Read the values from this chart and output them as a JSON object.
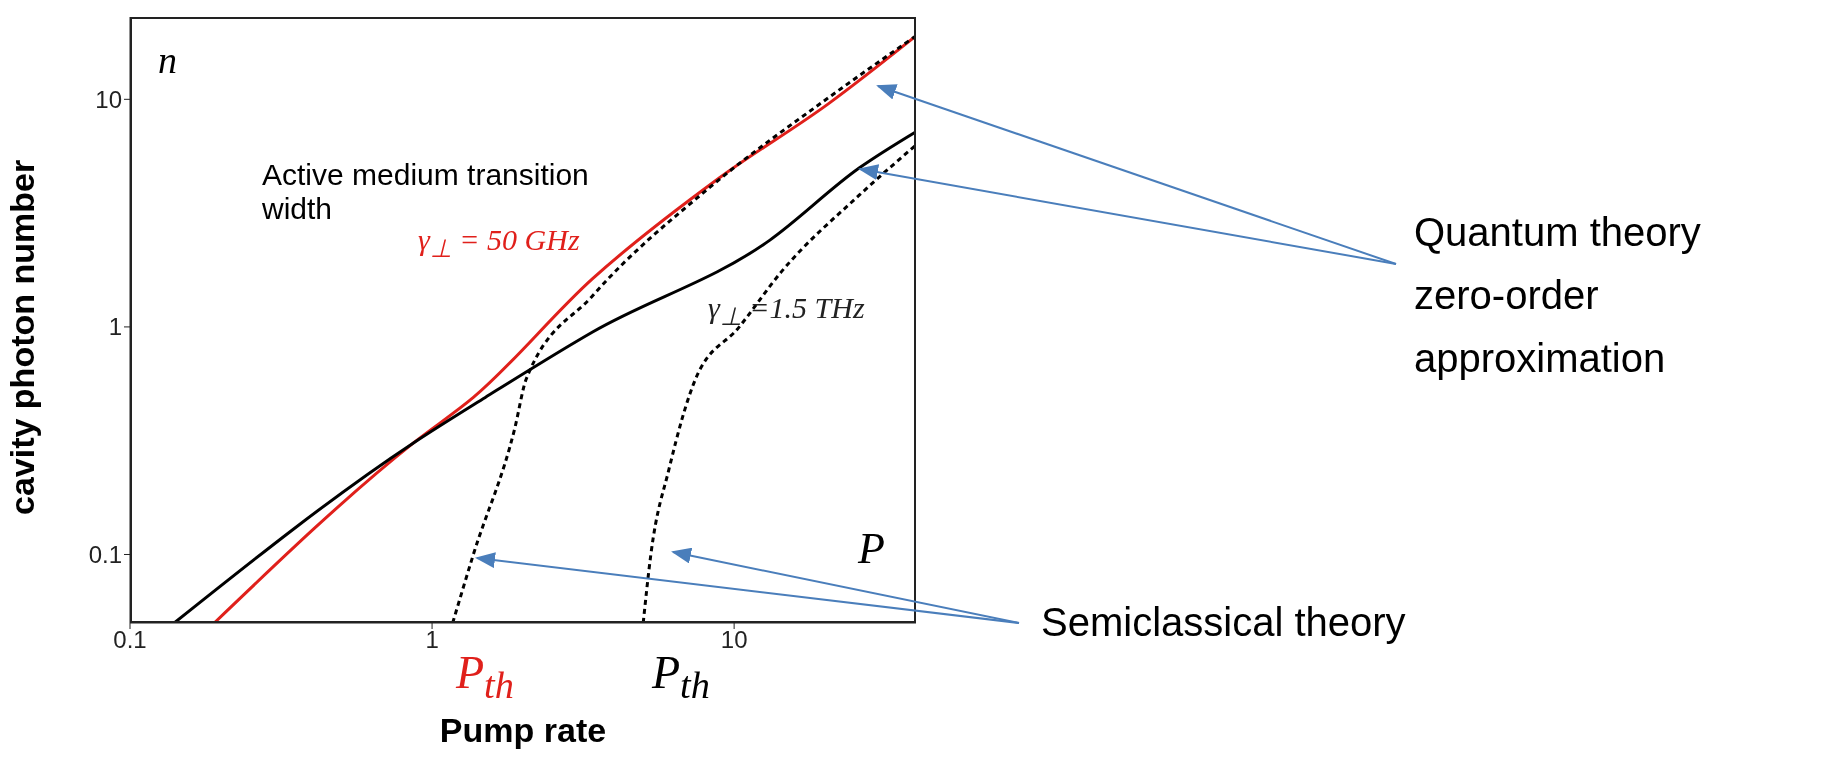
{
  "chart_data": {
    "type": "line",
    "xlabel": "Pump rate",
    "ylabel": "cavity photon number",
    "log": "xy",
    "xlim": [
      0.1,
      40
    ],
    "xticks": [
      0.1,
      1,
      10
    ],
    "ylim": [
      0.05,
      23
    ],
    "yticks": [
      0.1,
      1,
      10
    ],
    "grid": false,
    "legend": false,
    "marker": "none",
    "line_style": "solid",
    "series": [
      {
        "color": "#e0201b",
        "x": [
          0.19,
          0.87,
          1.37,
          3.4,
          8.9,
          20.6,
          40
        ],
        "values": [
          0.05,
          0.31,
          0.49,
          1.63,
          4.5,
          9.6,
          19
        ]
      },
      {
        "color": "#000000",
        "x": [
          0.14,
          0.87,
          1.5,
          3.4,
          13.1,
          26,
          40
        ],
        "values": [
          0.05,
          0.31,
          0.49,
          0.95,
          2.4,
          5.0,
          7.2
        ]
      },
      {
        "color": "#000000",
        "line_style": "dashed",
        "x": [
          1.17,
          1.37,
          1.88,
          2.05,
          3.4,
          8.3,
          20.6,
          40
        ],
        "values": [
          0.05,
          0.1,
          0.36,
          0.59,
          1.37,
          4.1,
          10.2,
          19
        ]
      },
      {
        "color": "#000000",
        "line_style": "dashed",
        "x": [
          5.0,
          5.3,
          6.1,
          7.45,
          10.4,
          14.3,
          26,
          40
        ],
        "values": [
          0.05,
          0.1,
          0.24,
          0.59,
          1.0,
          1.74,
          3.8,
          6.3
        ]
      }
    ],
    "annotations": [
      "n",
      "Active medium transition width",
      "γ$_{⊥}$ = 50 GHz",
      "γ$_{⊥}$ =1.5 THz",
      "P",
      "P$_{th}$",
      "P$_{th}$",
      "Quantum theory zero-order approximation",
      "Semiclassical theory"
    ]
  }
}
